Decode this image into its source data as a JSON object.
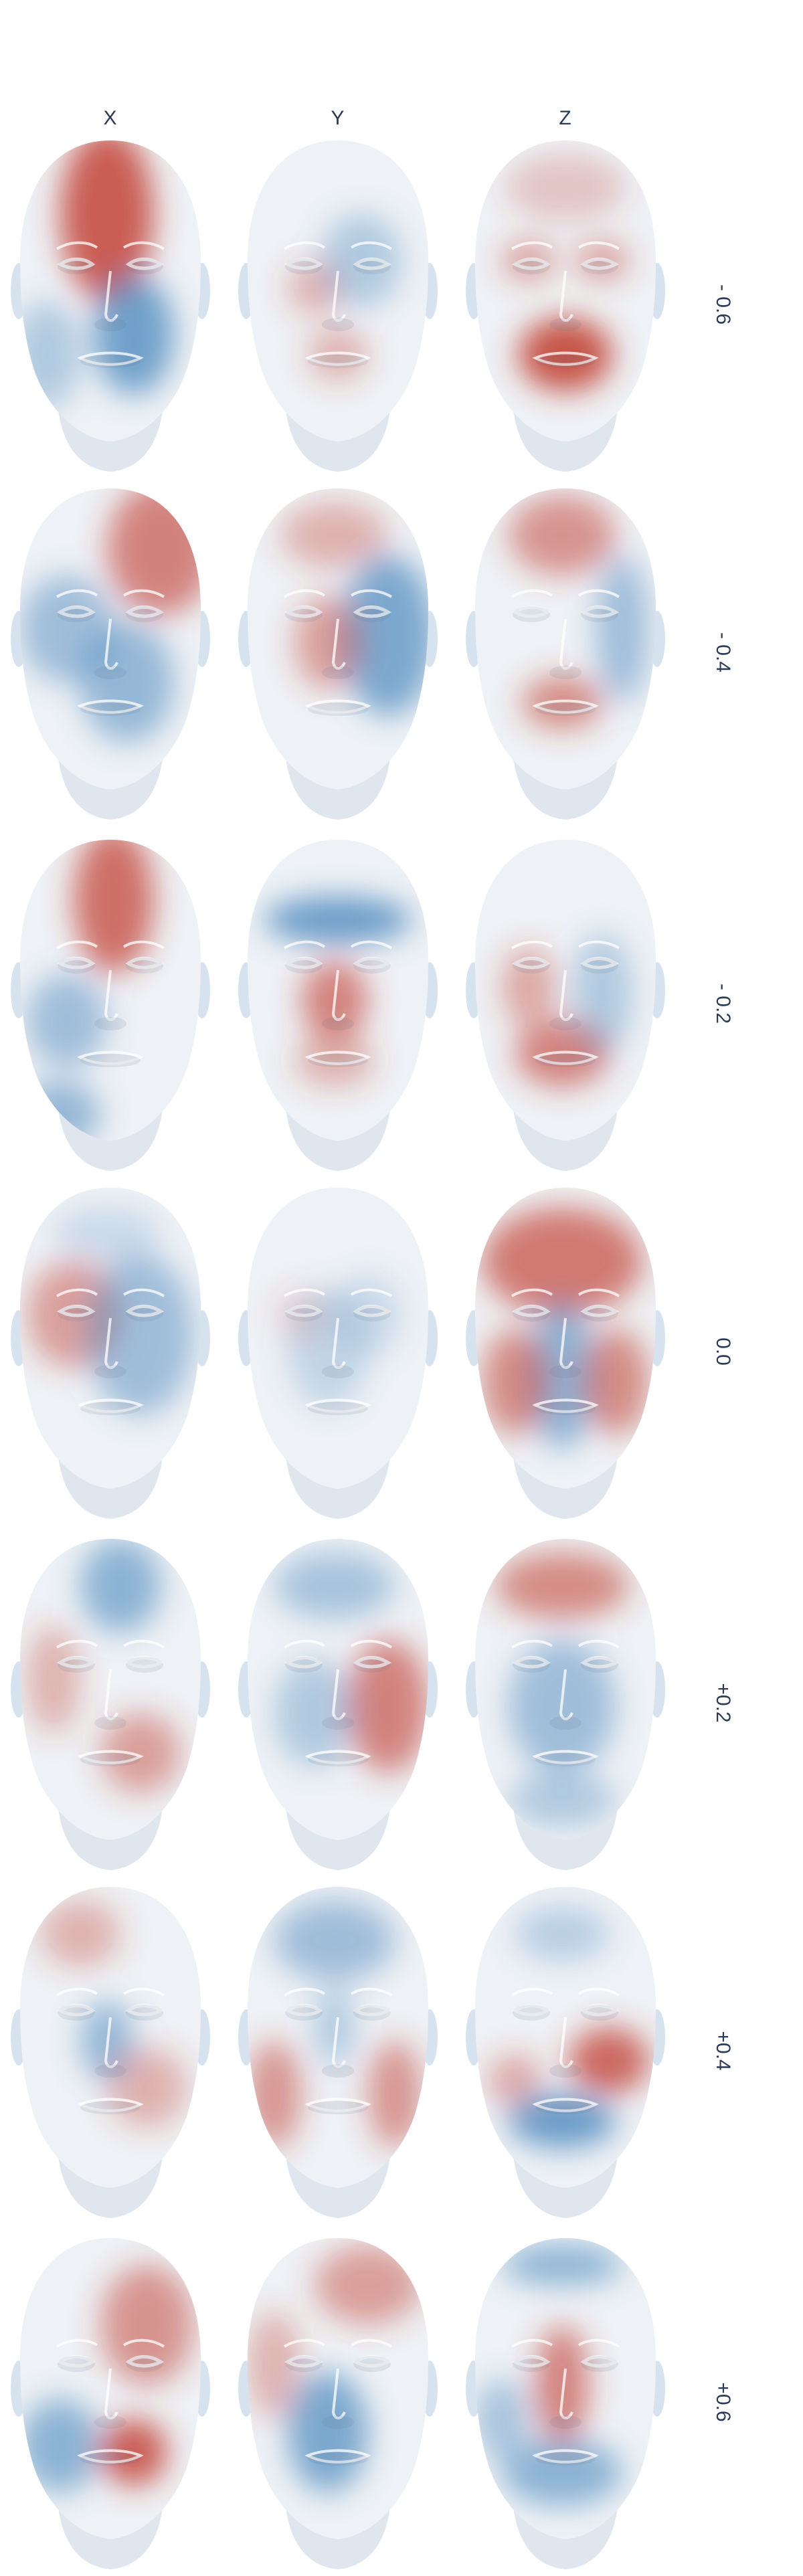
{
  "columns": [
    {
      "label": "X"
    },
    {
      "label": "Y"
    },
    {
      "label": "Z"
    }
  ],
  "rows": [
    {
      "label": "- 0.6"
    },
    {
      "label": "- 0.4"
    },
    {
      "label": "- 0.2"
    },
    {
      "label": "0.0"
    },
    {
      "label": "+0.2"
    },
    {
      "label": "+0.4"
    },
    {
      "label": "+0.6"
    }
  ],
  "colors": {
    "positive": "#c0392b",
    "negative": "#3d7fb8",
    "neutral": "#eef1f5",
    "label": "#2b3a55"
  },
  "icon": "face-mesh-heatmap"
}
